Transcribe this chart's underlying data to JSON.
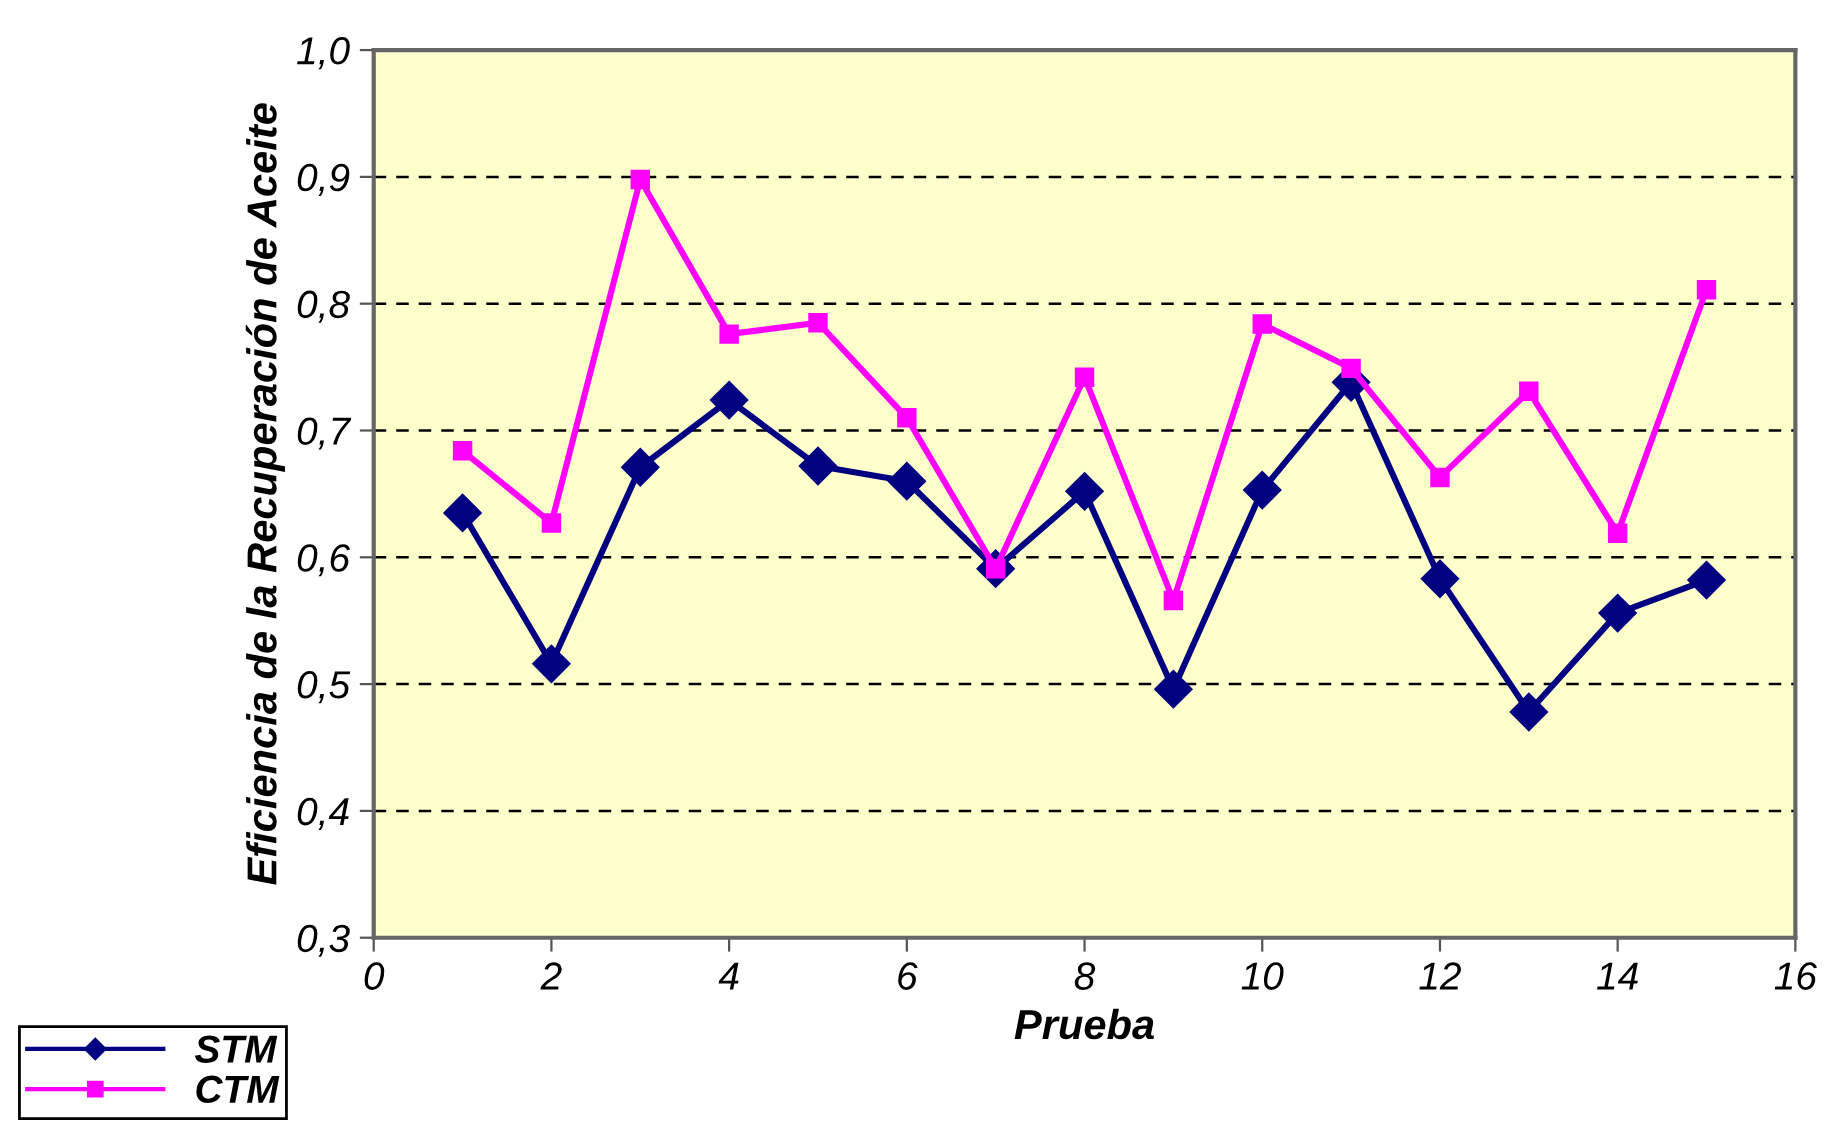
{
  "chart_data": {
    "type": "line",
    "xlabel": "Prueba",
    "ylabel": "Eficiencia de la Recuperación de Aceite",
    "x": [
      1,
      2,
      3,
      4,
      5,
      6,
      7,
      8,
      9,
      10,
      11,
      12,
      13,
      14,
      15
    ],
    "series": [
      {
        "name": "STM",
        "color": "#000080",
        "marker": "diamond",
        "values": [
          0.635,
          0.516,
          0.671,
          0.724,
          0.672,
          0.66,
          0.591,
          0.652,
          0.496,
          0.653,
          0.738,
          0.583,
          0.478,
          0.556,
          0.582
        ]
      },
      {
        "name": "CTM",
        "color": "#ff00ff",
        "marker": "square",
        "values": [
          0.684,
          0.627,
          0.898,
          0.776,
          0.785,
          0.71,
          0.591,
          0.742,
          0.566,
          0.784,
          0.749,
          0.663,
          0.731,
          0.619,
          0.811
        ]
      }
    ],
    "xlim": [
      0,
      16
    ],
    "xticks": [
      0,
      2,
      4,
      6,
      8,
      10,
      12,
      14,
      16
    ],
    "ylim": [
      0.3,
      1.0
    ],
    "yticks": [
      {
        "value": 0.3,
        "label": "0,3"
      },
      {
        "value": 0.4,
        "label": "0,4"
      },
      {
        "value": 0.5,
        "label": "0,5"
      },
      {
        "value": 0.6,
        "label": "0,6"
      },
      {
        "value": 0.7,
        "label": "0,7"
      },
      {
        "value": 0.8,
        "label": "0,8"
      },
      {
        "value": 0.9,
        "label": "0,9"
      },
      {
        "value": 1.0,
        "label": "1,0"
      }
    ],
    "grid": "y",
    "legend": "bottom left",
    "line_style": "solid"
  }
}
